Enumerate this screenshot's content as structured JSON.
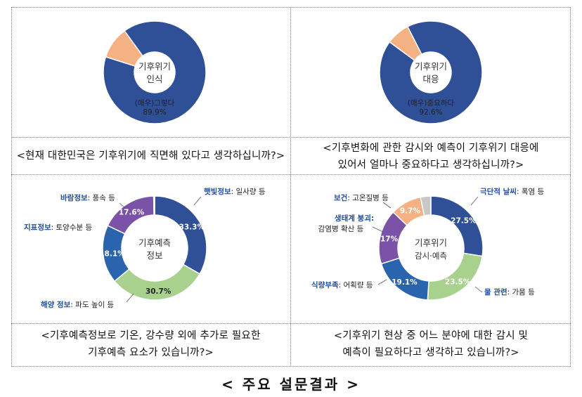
{
  "chart_data": [
    {
      "type": "pie",
      "title": "기후위기 인식",
      "center_label": [
        "기후위기",
        "인식"
      ],
      "slices": [
        {
          "label": "(매우)그렇다",
          "value": 89.9,
          "color": "#2f4f96"
        },
        {
          "label": "",
          "value": 10.1,
          "color": "#f4b183"
        }
      ],
      "question": "<현재 대한민국은 기후위기에 직면해 있다고 생각하십니까?>"
    },
    {
      "type": "pie",
      "title": "기후위기 대응",
      "center_label": [
        "기후위기",
        "대응"
      ],
      "slices": [
        {
          "label": "(매우)중요하다",
          "value": 92.6,
          "color": "#2f4f96"
        },
        {
          "label": "",
          "value": 7.4,
          "color": "#f4b183"
        }
      ],
      "question": [
        "<기후변화에 관한 감시와 예측이 기후위기 대응에",
        "있어서 얼마나 중요하다고 생각하십니까?>"
      ]
    },
    {
      "type": "pie",
      "title": "기후예측 정보",
      "center_label": [
        "기후예측",
        "정보"
      ],
      "slices": [
        {
          "key": "햇빛정보",
          "desc": "일사량 등",
          "value": 33.3,
          "color": "#2f4f96"
        },
        {
          "key": "해양 정보",
          "desc": "파도 높이 등",
          "value": 30.7,
          "color": "#a9d18e"
        },
        {
          "key": "지표정보",
          "desc": "토양수분 등",
          "value": 18.1,
          "color": "#2a64ae"
        },
        {
          "key": "바람정보",
          "desc": "풍속 등",
          "value": 17.6,
          "color": "#7a52a8"
        },
        {
          "key": "",
          "desc": "",
          "value": 0.3,
          "color": "#c8c8c8"
        }
      ],
      "question": [
        "<기후예측정보로 기온, 강수량 외에 추가로 필요한",
        "기후예측 요소가 있습니까?>"
      ]
    },
    {
      "type": "pie",
      "title": "기후위기 감시·예측",
      "center_label": [
        "기후위기",
        "감시·예측"
      ],
      "slices": [
        {
          "key": "극단적 날씨",
          "desc": "폭염 등",
          "value": 27.5,
          "color": "#2f4f96"
        },
        {
          "key": "물 관련",
          "desc": "가뭄 등",
          "value": 23.5,
          "color": "#a9d18e"
        },
        {
          "key": "식량부족",
          "desc": "어획량 등",
          "value": 19.1,
          "color": "#2a64ae"
        },
        {
          "key": "생태계 붕괴",
          "desc": "감염병 확산 등",
          "value": 17.0,
          "color": "#7a52a8"
        },
        {
          "key": "보건",
          "desc": "고온질병 등",
          "value": 9.7,
          "color": "#f4b183"
        },
        {
          "key": "",
          "desc": "",
          "value": 3.2,
          "color": "#c8c8c8"
        }
      ],
      "question": [
        "<기후위기 현상 중 어느 분야에 대한 감시 및",
        "예측이 필요하다고 생각하고 있습니까?>"
      ]
    }
  ],
  "caption": "< 주요 설문결과 >",
  "pct_labels": {
    "c1": "89.9%",
    "c2": "92.6%",
    "c3": [
      "33.3%",
      "30.7%",
      "18.1%",
      "17.6%"
    ],
    "c4": [
      "27.5%",
      "23.5%",
      "19.1%",
      "17%",
      "9.7%"
    ]
  }
}
